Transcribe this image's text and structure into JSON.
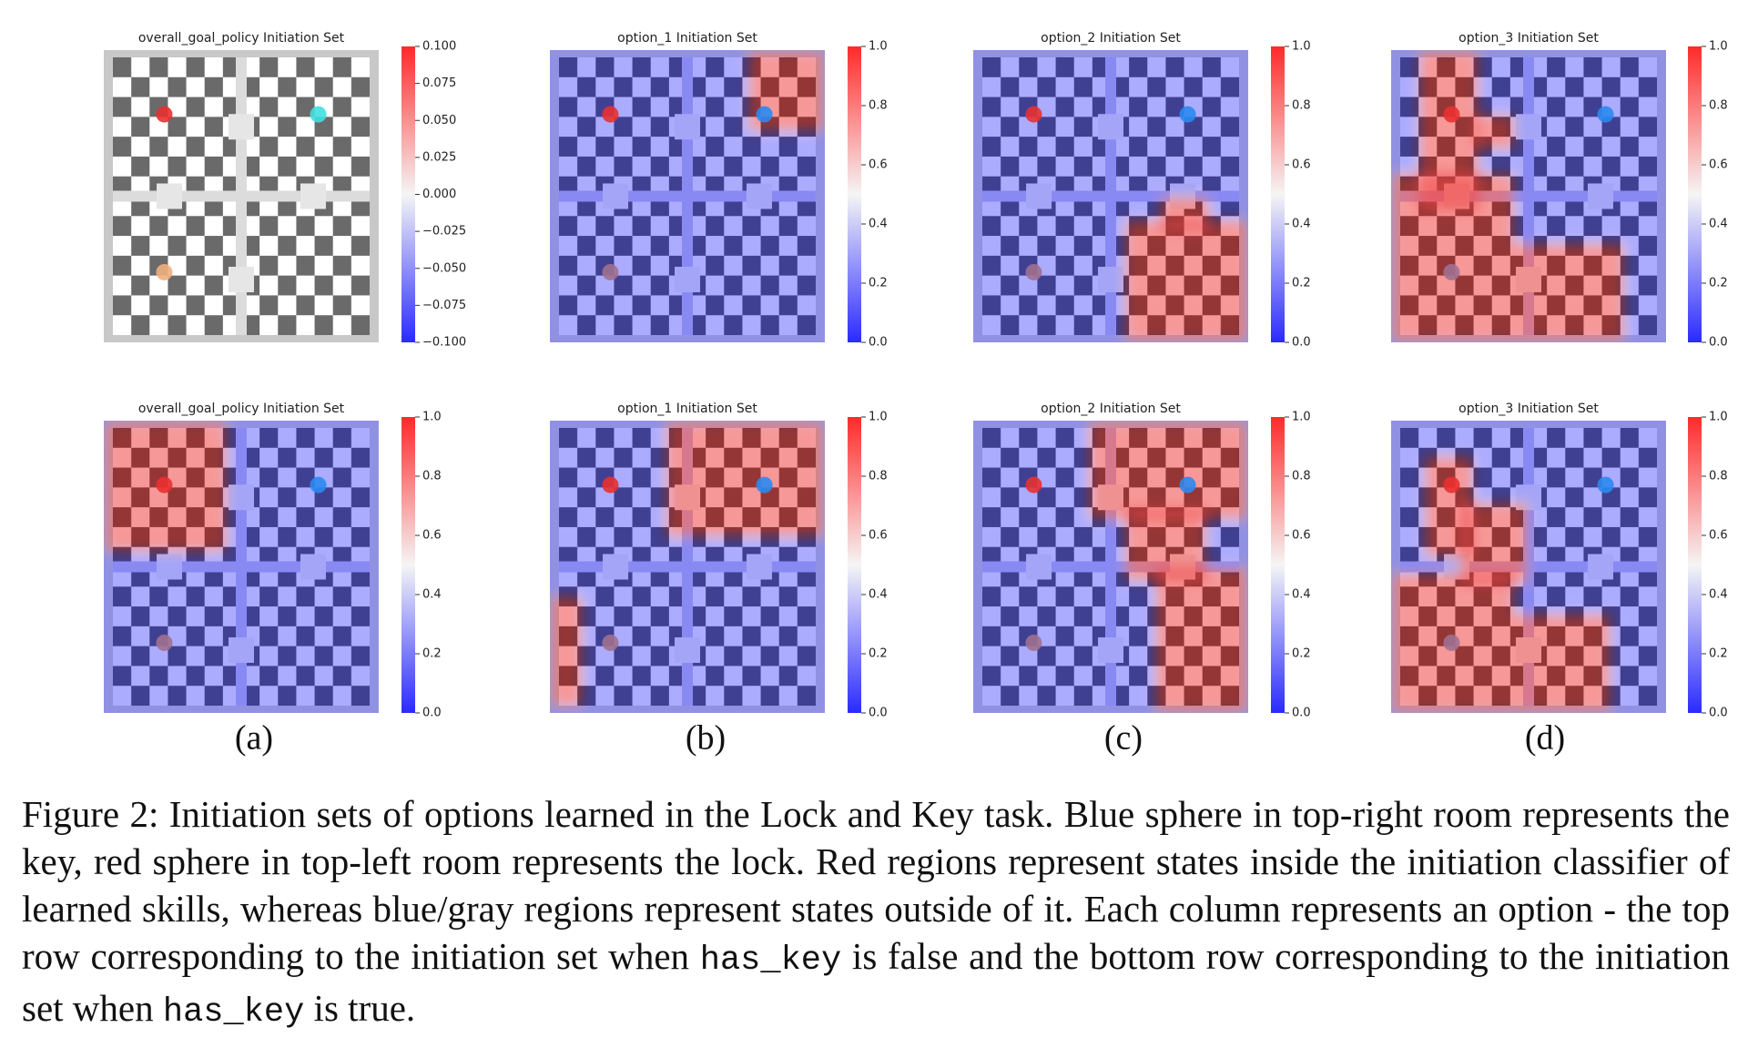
{
  "figure": {
    "panels": [
      {
        "title": "overall_goal_policy Initiation Set",
        "colorbar": {
          "lim": [
            -0.1,
            0.1
          ],
          "ticks": [
            {
              "value": 0.1,
              "label": "0.100"
            },
            {
              "value": 0.075,
              "label": "0.075"
            },
            {
              "value": 0.05,
              "label": "0.050"
            },
            {
              "value": 0.025,
              "label": "0.025"
            },
            {
              "value": 0,
              "label": "0.000"
            },
            {
              "value": -0.025,
              "label": "−0.025"
            },
            {
              "value": -0.05,
              "label": "−0.050"
            },
            {
              "value": -0.075,
              "label": "−0.075"
            },
            {
              "value": -0.1,
              "label": "−0.100"
            }
          ]
        }
      },
      {
        "title": "option_1 Initiation Set",
        "colorbar": {
          "lim": [
            0,
            1
          ],
          "ticks": [
            {
              "value": 0,
              "label": "0.0"
            },
            0.2,
            0.4,
            0.6,
            0.8,
            {
              "value": 1,
              "label": "1.0"
            }
          ]
        }
      },
      {
        "title": "option_2 Initiation Set",
        "colorbar": {
          "lim": [
            0,
            1
          ],
          "ticks": [
            {
              "value": 0,
              "label": "0.0"
            },
            0.2,
            0.4,
            0.6,
            0.8,
            {
              "value": 1,
              "label": "1.0"
            }
          ]
        }
      },
      {
        "title": "option_3 Initiation Set",
        "colorbar": {
          "lim": [
            0,
            1
          ],
          "ticks": [
            {
              "value": 0,
              "label": "0.0"
            },
            0.2,
            0.4,
            0.6,
            0.8,
            {
              "value": 1,
              "label": "1.0"
            }
          ]
        }
      },
      {
        "title": "overall_goal_policy Initiation Set",
        "colorbar": {
          "lim": [
            0,
            1
          ],
          "ticks": [
            {
              "value": 0,
              "label": "0.0"
            },
            0.2,
            0.4,
            0.6,
            0.8,
            {
              "value": 1,
              "label": "1.0"
            }
          ]
        }
      },
      {
        "title": "option_1 Initiation Set",
        "colorbar": {
          "lim": [
            0,
            1
          ],
          "ticks": [
            {
              "value": 0,
              "label": "0.0"
            },
            0.2,
            0.4,
            0.6,
            0.8,
            {
              "value": 1,
              "label": "1.0"
            }
          ]
        }
      },
      {
        "title": "option_2 Initiation Set",
        "colorbar": {
          "lim": [
            0,
            1
          ],
          "ticks": [
            {
              "value": 0,
              "label": "0.0"
            },
            0.2,
            0.4,
            0.6,
            0.8,
            {
              "value": 1,
              "label": "1.0"
            }
          ]
        }
      },
      {
        "title": "option_3 Initiation Set",
        "colorbar": {
          "lim": [
            0,
            1
          ],
          "ticks": [
            {
              "value": 0,
              "label": "0.0"
            },
            0.2,
            0.4,
            0.6,
            0.8,
            {
              "value": 1,
              "label": "1.0"
            }
          ]
        }
      }
    ],
    "sublabels": [
      "(a)",
      "(b)",
      "(c)",
      "(d)"
    ],
    "caption": [
      "Figure 2: Initiation sets of options learned in the Lock and Key task. Blue sphere in top-right room represents the key, red sphere in top-left room represents the lock.  Red regions represent states inside the initiation classifier of learned skills, whereas blue/gray regions represent states outside of it. Each column represents an option - the top row corresponding to the initiation set when ",
      "has_key",
      " is false and the bottom row corresponding to the initiation set when ",
      "has_key",
      " is true."
    ]
  }
}
